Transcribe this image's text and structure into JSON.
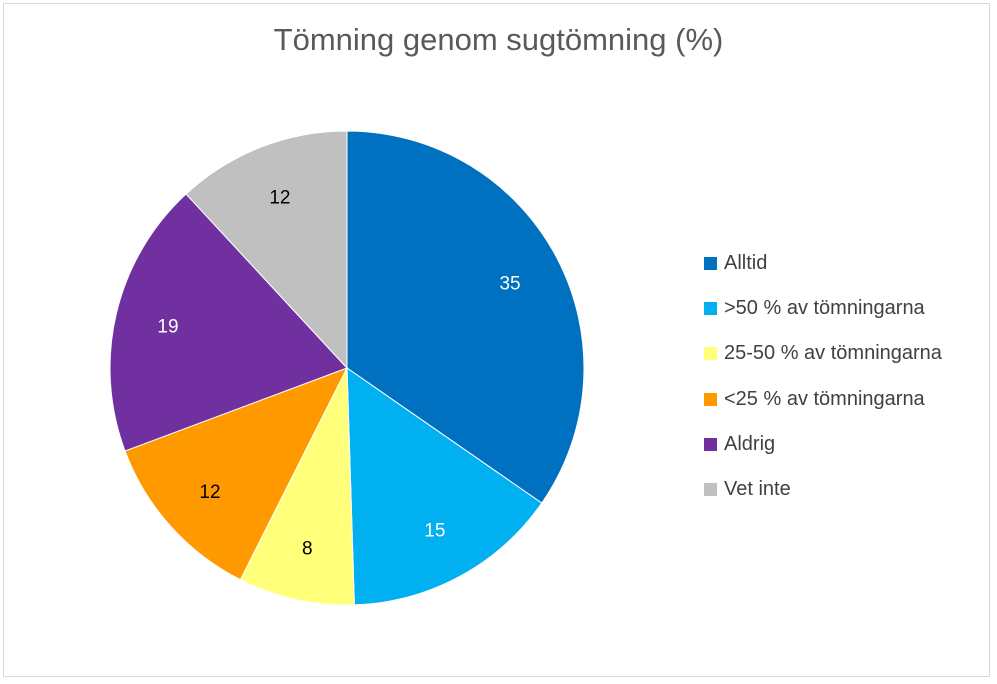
{
  "chart_data": {
    "type": "pie",
    "title": "Tömning genom sugtömning (%)",
    "categories": [
      "Alltid",
      ">50 % av tömningarna",
      "25-50 % av tömningarna",
      "<25 % av tömningarna",
      "Aldrig",
      "Vet inte"
    ],
    "values": [
      35,
      15,
      8,
      12,
      19,
      12
    ],
    "colors": [
      "#0070C0",
      "#00B0F0",
      "#FFFF79",
      "#FF9900",
      "#7030A0",
      "#C0C0C0"
    ],
    "label_colors": [
      "#ffffff",
      "#ffffff",
      "#000000",
      "#000000",
      "#ffffff",
      "#000000"
    ],
    "legend_position": "right"
  }
}
